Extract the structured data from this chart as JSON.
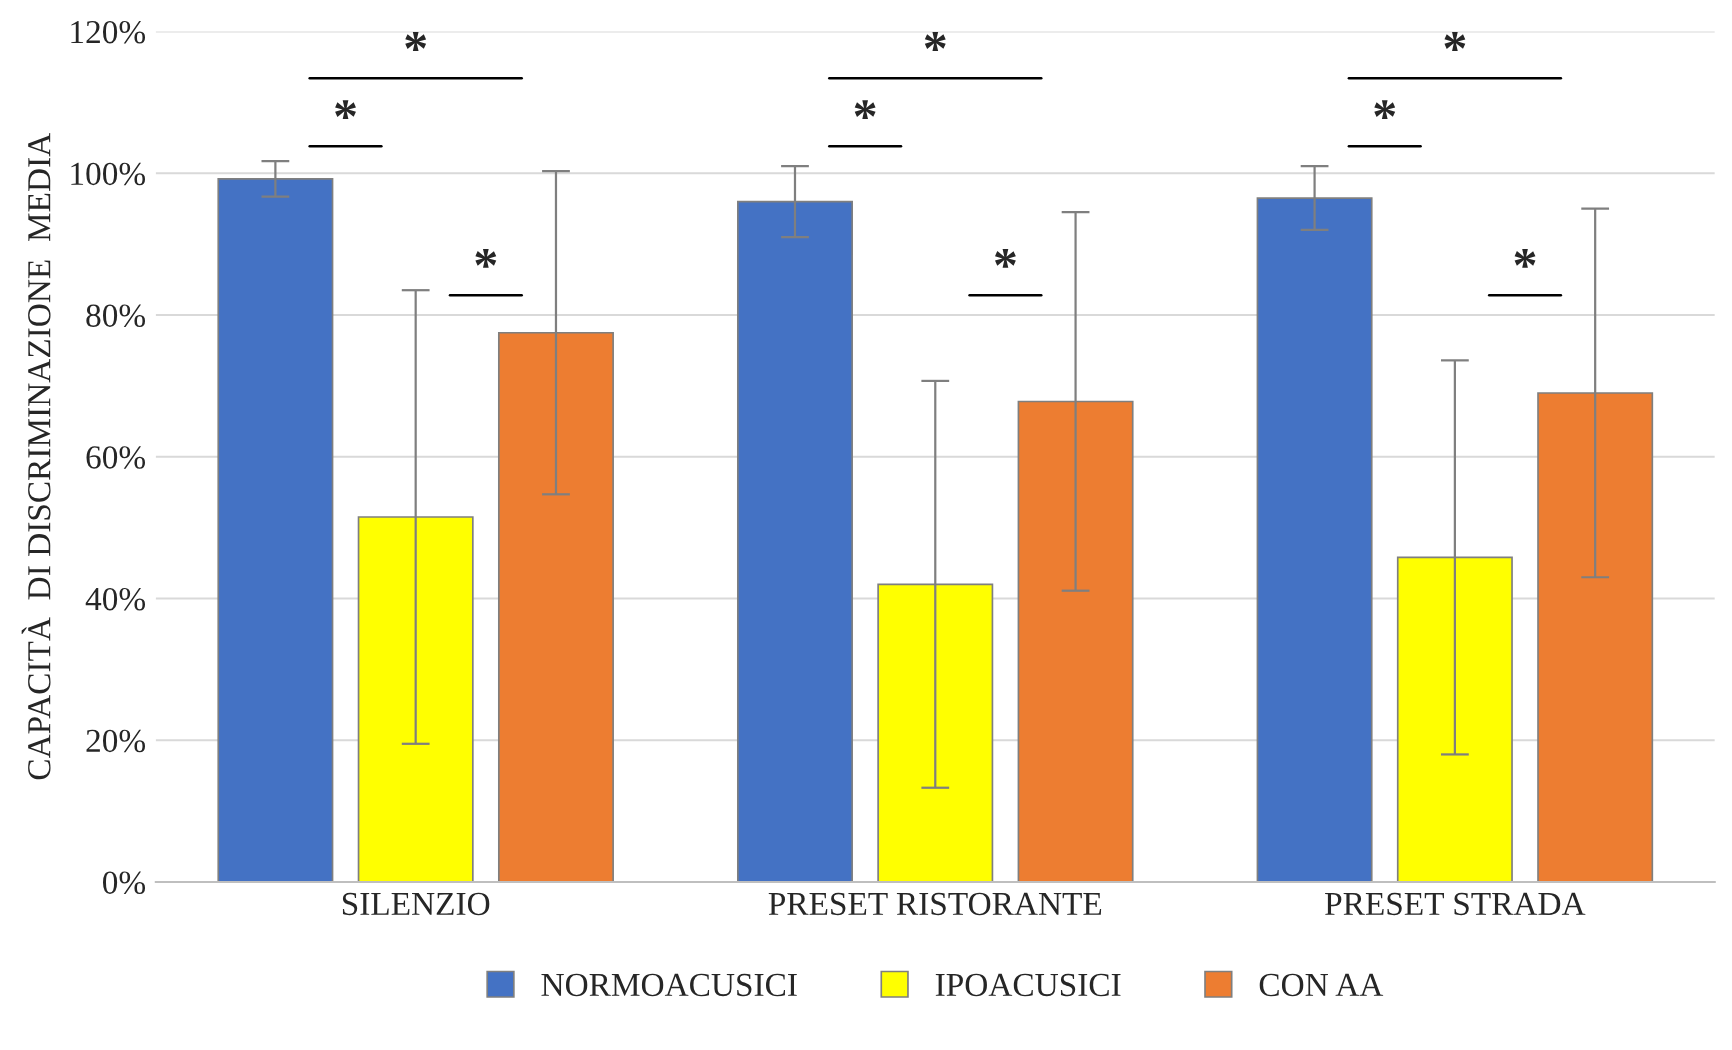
{
  "chart_data": {
    "type": "bar",
    "ylabel": "CAPACITÀ  DI DISCRIMINAZIONE  MEDIA",
    "categories": [
      "SILENZIO",
      "PRESET RISTORANTE",
      "PRESET STRADA"
    ],
    "series": [
      {
        "name": "NORMOACUSICI",
        "color": "#4472c4",
        "values": [
          99.2,
          96,
          96.5
        ],
        "errors": [
          2.5,
          5,
          4.5
        ]
      },
      {
        "name": "IPOACUSICI",
        "color": "#ffff00",
        "values": [
          51.5,
          42,
          45.8
        ],
        "errors": [
          32,
          28.7,
          27.8
        ]
      },
      {
        "name": "CON AA",
        "color": "#ed7d31",
        "values": [
          77.5,
          67.8,
          69
        ],
        "errors": [
          22.8,
          26.7,
          26
        ]
      }
    ],
    "ylim": [
      0,
      120
    ],
    "yticks": [
      {
        "value": 0,
        "label": "0%"
      },
      {
        "value": 20,
        "label": "20%"
      },
      {
        "value": 40,
        "label": "40%"
      },
      {
        "value": 60,
        "label": "60%"
      },
      {
        "value": 80,
        "label": "80%"
      },
      {
        "value": 100,
        "label": "100%"
      },
      {
        "value": 120,
        "label": "120%"
      }
    ],
    "grid": "y",
    "legend": "bottom",
    "annotations": [
      "*",
      "*",
      "*",
      "*",
      "*",
      "*",
      "*",
      "*",
      "*"
    ]
  }
}
